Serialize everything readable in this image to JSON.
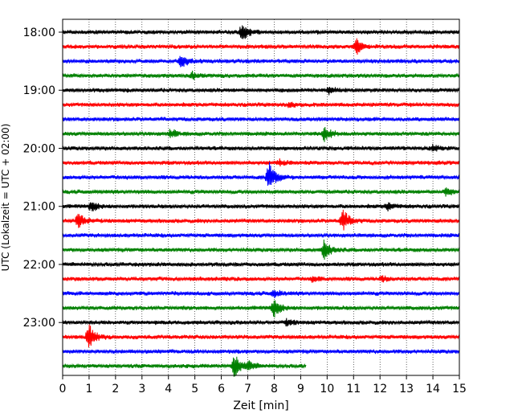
{
  "chart_data": {
    "type": "line",
    "subtype": "helicorder",
    "xlabel": "Zeit  [min]",
    "ylabel": "UTC (Lokalzeit = UTC + 02:00)",
    "xlim": [
      0,
      15
    ],
    "x_ticks": [
      "0",
      "1",
      "2",
      "3",
      "4",
      "5",
      "6",
      "7",
      "8",
      "9",
      "10",
      "11",
      "12",
      "13",
      "14",
      "15"
    ],
    "y_tick_labels": [
      "18:00",
      "19:00",
      "20:00",
      "21:00",
      "22:00",
      "23:00"
    ],
    "grid": "x-dotted",
    "colors_cycle": [
      "#000000",
      "#ff0000",
      "#0000ff",
      "#008000"
    ],
    "traces": [
      {
        "start": "18:00",
        "end_min": 15,
        "events": [
          {
            "t": 6.8,
            "amp": 1.0
          }
        ]
      },
      {
        "start": "18:15",
        "end_min": 15,
        "events": [
          {
            "t": 11.1,
            "amp": 0.9
          }
        ]
      },
      {
        "start": "18:30",
        "end_min": 15,
        "events": [
          {
            "t": 4.5,
            "amp": 0.7
          }
        ]
      },
      {
        "start": "18:45",
        "end_min": 15,
        "events": [
          {
            "t": 4.9,
            "amp": 0.35
          }
        ]
      },
      {
        "start": "19:00",
        "end_min": 15,
        "events": [
          {
            "t": 10.1,
            "amp": 0.5
          }
        ]
      },
      {
        "start": "19:15",
        "end_min": 15,
        "events": [
          {
            "t": 8.6,
            "amp": 0.3
          }
        ]
      },
      {
        "start": "19:30",
        "end_min": 15,
        "events": []
      },
      {
        "start": "19:45",
        "end_min": 15,
        "events": [
          {
            "t": 4.1,
            "amp": 0.5
          },
          {
            "t": 9.9,
            "amp": 0.8
          }
        ]
      },
      {
        "start": "20:00",
        "end_min": 15,
        "events": [
          {
            "t": 14.0,
            "amp": 0.3
          }
        ]
      },
      {
        "start": "20:15",
        "end_min": 15,
        "events": [
          {
            "t": 8.2,
            "amp": 0.3
          }
        ]
      },
      {
        "start": "20:30",
        "end_min": 15,
        "events": [
          {
            "t": 7.8,
            "amp": 1.7
          }
        ]
      },
      {
        "start": "20:45",
        "end_min": 15,
        "events": [
          {
            "t": 14.5,
            "amp": 0.4
          }
        ]
      },
      {
        "start": "21:00",
        "end_min": 15,
        "events": [
          {
            "t": 1.1,
            "amp": 0.6
          },
          {
            "t": 12.3,
            "amp": 0.4
          }
        ]
      },
      {
        "start": "21:15",
        "end_min": 15,
        "events": [
          {
            "t": 0.6,
            "amp": 1.0
          },
          {
            "t": 10.6,
            "amp": 1.2
          }
        ]
      },
      {
        "start": "21:30",
        "end_min": 15,
        "events": []
      },
      {
        "start": "21:45",
        "end_min": 15,
        "events": [
          {
            "t": 9.9,
            "amp": 1.2
          }
        ]
      },
      {
        "start": "22:00",
        "end_min": 15,
        "events": []
      },
      {
        "start": "22:15",
        "end_min": 15,
        "events": [
          {
            "t": 9.5,
            "amp": 0.3
          },
          {
            "t": 12.1,
            "amp": 0.3
          }
        ]
      },
      {
        "start": "22:30",
        "end_min": 15,
        "events": [
          {
            "t": 8.0,
            "amp": 0.4
          }
        ]
      },
      {
        "start": "22:45",
        "end_min": 15,
        "events": [
          {
            "t": 8.0,
            "amp": 1.1
          }
        ]
      },
      {
        "start": "23:00",
        "end_min": 15,
        "events": [
          {
            "t": 8.5,
            "amp": 0.35
          }
        ]
      },
      {
        "start": "23:15",
        "end_min": 15,
        "events": [
          {
            "t": 1.0,
            "amp": 1.4
          }
        ]
      },
      {
        "start": "23:30",
        "end_min": 15,
        "events": []
      },
      {
        "start": "23:45",
        "end_min": 9.2,
        "events": [
          {
            "t": 6.5,
            "amp": 1.4
          },
          {
            "t": 7.0,
            "amp": 0.5
          }
        ]
      }
    ]
  }
}
